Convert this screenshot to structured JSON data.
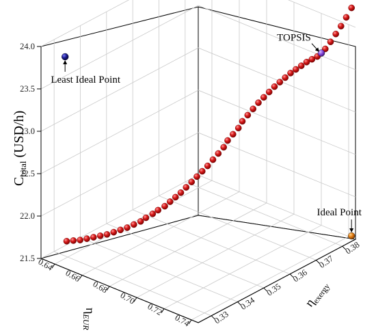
{
  "chart_data": {
    "type": "scatter3d",
    "z_axis": {
      "label_main": "C",
      "label_sub": "total",
      "label_unit": " (USD/h)",
      "range": [
        21.5,
        24.0
      ],
      "ticks": [
        "21.5",
        "22.0",
        "22.5",
        "23.0",
        "23.5",
        "24.0"
      ]
    },
    "x_axis": {
      "label_main": "η",
      "label_sub": "EUR",
      "range": [
        0.63,
        0.745
      ],
      "ticks": [
        "0.64",
        "0.66",
        "0.68",
        "0.70",
        "0.72",
        "0.74"
      ]
    },
    "y_axis": {
      "label_main": "η",
      "label_sub": "exergy",
      "range": [
        0.325,
        0.385
      ],
      "ticks": [
        "0.33",
        "0.34",
        "0.35",
        "0.36",
        "0.37",
        "0.38"
      ]
    },
    "grid": true,
    "pareto_front_color": "#cc1111",
    "pareto_front": [
      [
        0.643,
        0.328,
        21.74
      ],
      [
        0.646,
        0.329,
        21.75
      ],
      [
        0.649,
        0.33,
        21.76
      ],
      [
        0.652,
        0.331,
        21.78
      ],
      [
        0.655,
        0.332,
        21.8
      ],
      [
        0.658,
        0.333,
        21.82
      ],
      [
        0.661,
        0.334,
        21.84
      ],
      [
        0.664,
        0.335,
        21.87
      ],
      [
        0.667,
        0.336,
        21.9
      ],
      [
        0.67,
        0.337,
        21.93
      ],
      [
        0.673,
        0.338,
        21.97
      ],
      [
        0.676,
        0.339,
        22.01
      ],
      [
        0.678,
        0.34,
        22.05
      ],
      [
        0.681,
        0.341,
        22.1
      ],
      [
        0.683,
        0.342,
        22.14
      ],
      [
        0.686,
        0.343,
        22.19
      ],
      [
        0.688,
        0.344,
        22.24
      ],
      [
        0.69,
        0.345,
        22.29
      ],
      [
        0.692,
        0.346,
        22.34
      ],
      [
        0.694,
        0.347,
        22.4
      ],
      [
        0.696,
        0.348,
        22.46
      ],
      [
        0.698,
        0.349,
        22.52
      ],
      [
        0.7,
        0.35,
        22.58
      ],
      [
        0.702,
        0.351,
        22.64
      ],
      [
        0.704,
        0.352,
        22.71
      ],
      [
        0.706,
        0.353,
        22.78
      ],
      [
        0.708,
        0.354,
        22.85
      ],
      [
        0.709,
        0.355,
        22.92
      ],
      [
        0.711,
        0.356,
        22.99
      ],
      [
        0.713,
        0.357,
        23.06
      ],
      [
        0.714,
        0.358,
        23.13
      ],
      [
        0.716,
        0.359,
        23.2
      ],
      [
        0.718,
        0.36,
        23.27
      ],
      [
        0.72,
        0.361,
        23.34
      ],
      [
        0.722,
        0.362,
        23.4
      ],
      [
        0.724,
        0.363,
        23.46
      ],
      [
        0.726,
        0.364,
        23.52
      ],
      [
        0.728,
        0.365,
        23.57
      ],
      [
        0.73,
        0.366,
        23.62
      ],
      [
        0.732,
        0.367,
        23.67
      ],
      [
        0.734,
        0.368,
        23.71
      ],
      [
        0.736,
        0.369,
        23.75
      ],
      [
        0.738,
        0.37,
        23.79
      ],
      [
        0.74,
        0.371,
        23.82
      ],
      [
        0.742,
        0.372,
        23.85
      ],
      [
        0.743,
        0.373,
        23.88
      ],
      [
        0.744,
        0.374,
        23.92
      ],
      [
        0.744,
        0.376,
        23.97
      ],
      [
        0.744,
        0.378,
        24.03
      ],
      [
        0.744,
        0.38,
        24.09
      ],
      [
        0.744,
        0.382,
        24.16
      ],
      [
        0.744,
        0.384,
        24.24
      ]
    ],
    "special_points": [
      {
        "label": "Least Ideal Point",
        "x": 0.638,
        "y": 0.33,
        "z": 23.85,
        "color": "#1a1a8c"
      },
      {
        "label": "TOPSIS",
        "x": 0.743,
        "y": 0.373,
        "z": 23.88,
        "color": "#8a4de0"
      },
      {
        "label": "Ideal Point",
        "x": 0.744,
        "y": 0.384,
        "z": 21.55,
        "color": "#e07a10"
      }
    ]
  }
}
